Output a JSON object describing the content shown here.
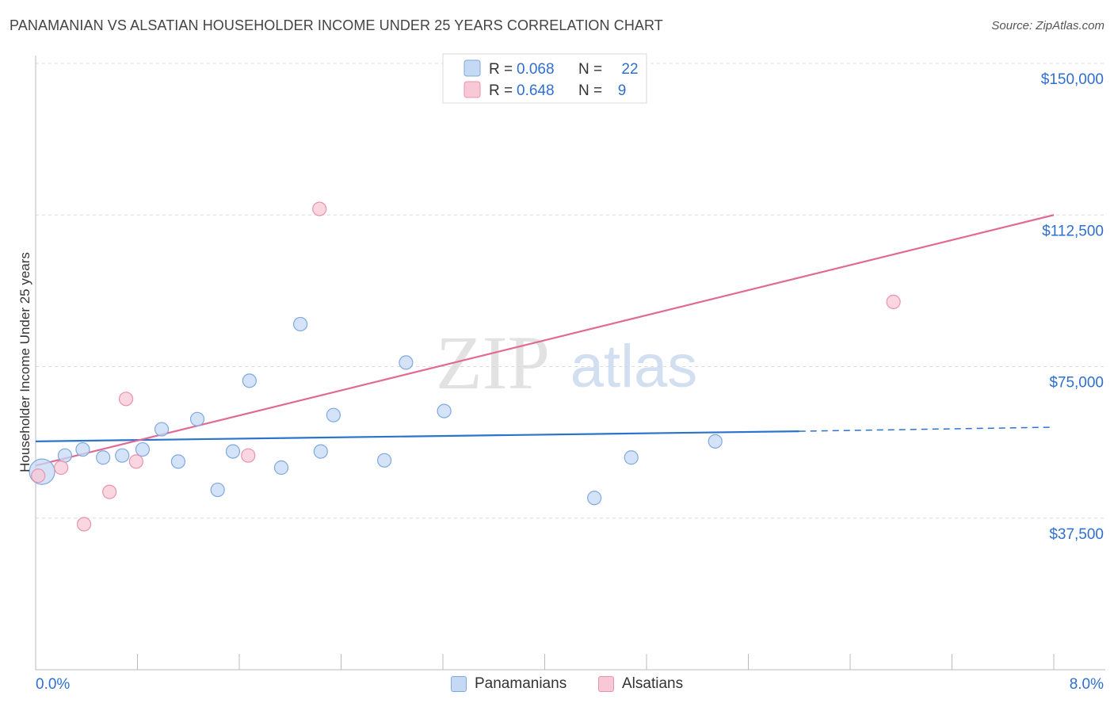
{
  "chart_data": {
    "type": "scatter",
    "title": "PANAMANIAN VS ALSATIAN HOUSEHOLDER INCOME UNDER 25 YEARS CORRELATION CHART",
    "source_label": "Source:",
    "source_value": "ZipAtlas.com",
    "ylabel": "Householder Income Under 25 years",
    "xlabel": "",
    "xlim": [
      0,
      8
    ],
    "ylim": [
      0,
      155000
    ],
    "x_tick_labels": [
      "0.0%",
      "8.0%"
    ],
    "y_ticks": [
      37500,
      75000,
      112500,
      150000
    ],
    "y_tick_labels": [
      "$37,500",
      "$75,000",
      "$112,500",
      "$150,000"
    ],
    "watermark": {
      "zip": "ZIP",
      "atlas": "atlas"
    },
    "colors": {
      "blue_fill": "#c5d9f5",
      "blue_stroke": "#7ea9df",
      "blue_line": "#2a74cc",
      "pink_fill": "#f8c8d6",
      "pink_stroke": "#e893ad",
      "pink_line": "#e06a94",
      "value_text": "#2f6fd0"
    },
    "stats_legend": [
      {
        "series": "Panamanians",
        "r_label": "R = ",
        "r_value": "0.068",
        "n_label": "N = ",
        "n_value": "22"
      },
      {
        "series": "Alsatians",
        "r_label": "R = ",
        "r_value": "0.648",
        "n_label": "N = ",
        "n_value": "9"
      }
    ],
    "series": [
      {
        "name": "Panamanians",
        "points": [
          {
            "x": 0.05,
            "y": 49000,
            "big": true
          },
          {
            "x": 0.23,
            "y": 53000
          },
          {
            "x": 0.37,
            "y": 54500
          },
          {
            "x": 0.53,
            "y": 52500
          },
          {
            "x": 0.68,
            "y": 53000
          },
          {
            "x": 0.84,
            "y": 54500
          },
          {
            "x": 0.99,
            "y": 59500
          },
          {
            "x": 1.12,
            "y": 51500
          },
          {
            "x": 1.27,
            "y": 62000
          },
          {
            "x": 1.43,
            "y": 44500
          },
          {
            "x": 1.55,
            "y": 54000
          },
          {
            "x": 1.68,
            "y": 71500
          },
          {
            "x": 1.93,
            "y": 50000
          },
          {
            "x": 2.08,
            "y": 85500
          },
          {
            "x": 2.24,
            "y": 54000
          },
          {
            "x": 2.34,
            "y": 63000
          },
          {
            "x": 2.74,
            "y": 51800
          },
          {
            "x": 2.91,
            "y": 76000
          },
          {
            "x": 3.21,
            "y": 64000
          },
          {
            "x": 4.39,
            "y": 42500
          },
          {
            "x": 4.68,
            "y": 52500
          },
          {
            "x": 5.34,
            "y": 56500
          }
        ],
        "trend": {
          "x0": 0.0,
          "y0": 56500,
          "x1": 6.0,
          "y1": 59000,
          "dash_to_x": 8.0,
          "dash_to_y": 60000
        }
      },
      {
        "name": "Alsatians",
        "points": [
          {
            "x": 0.02,
            "y": 48000
          },
          {
            "x": 0.2,
            "y": 50000
          },
          {
            "x": 0.38,
            "y": 36000
          },
          {
            "x": 0.58,
            "y": 44000
          },
          {
            "x": 0.71,
            "y": 67000
          },
          {
            "x": 0.79,
            "y": 51500
          },
          {
            "x": 1.67,
            "y": 53000
          },
          {
            "x": 2.23,
            "y": 114000
          },
          {
            "x": 6.74,
            "y": 91000
          }
        ],
        "trend": {
          "x0": 0.0,
          "y0": 50500,
          "x1": 8.0,
          "y1": 112500
        }
      }
    ],
    "bottom_legend": [
      "Panamanians",
      "Alsatians"
    ]
  }
}
